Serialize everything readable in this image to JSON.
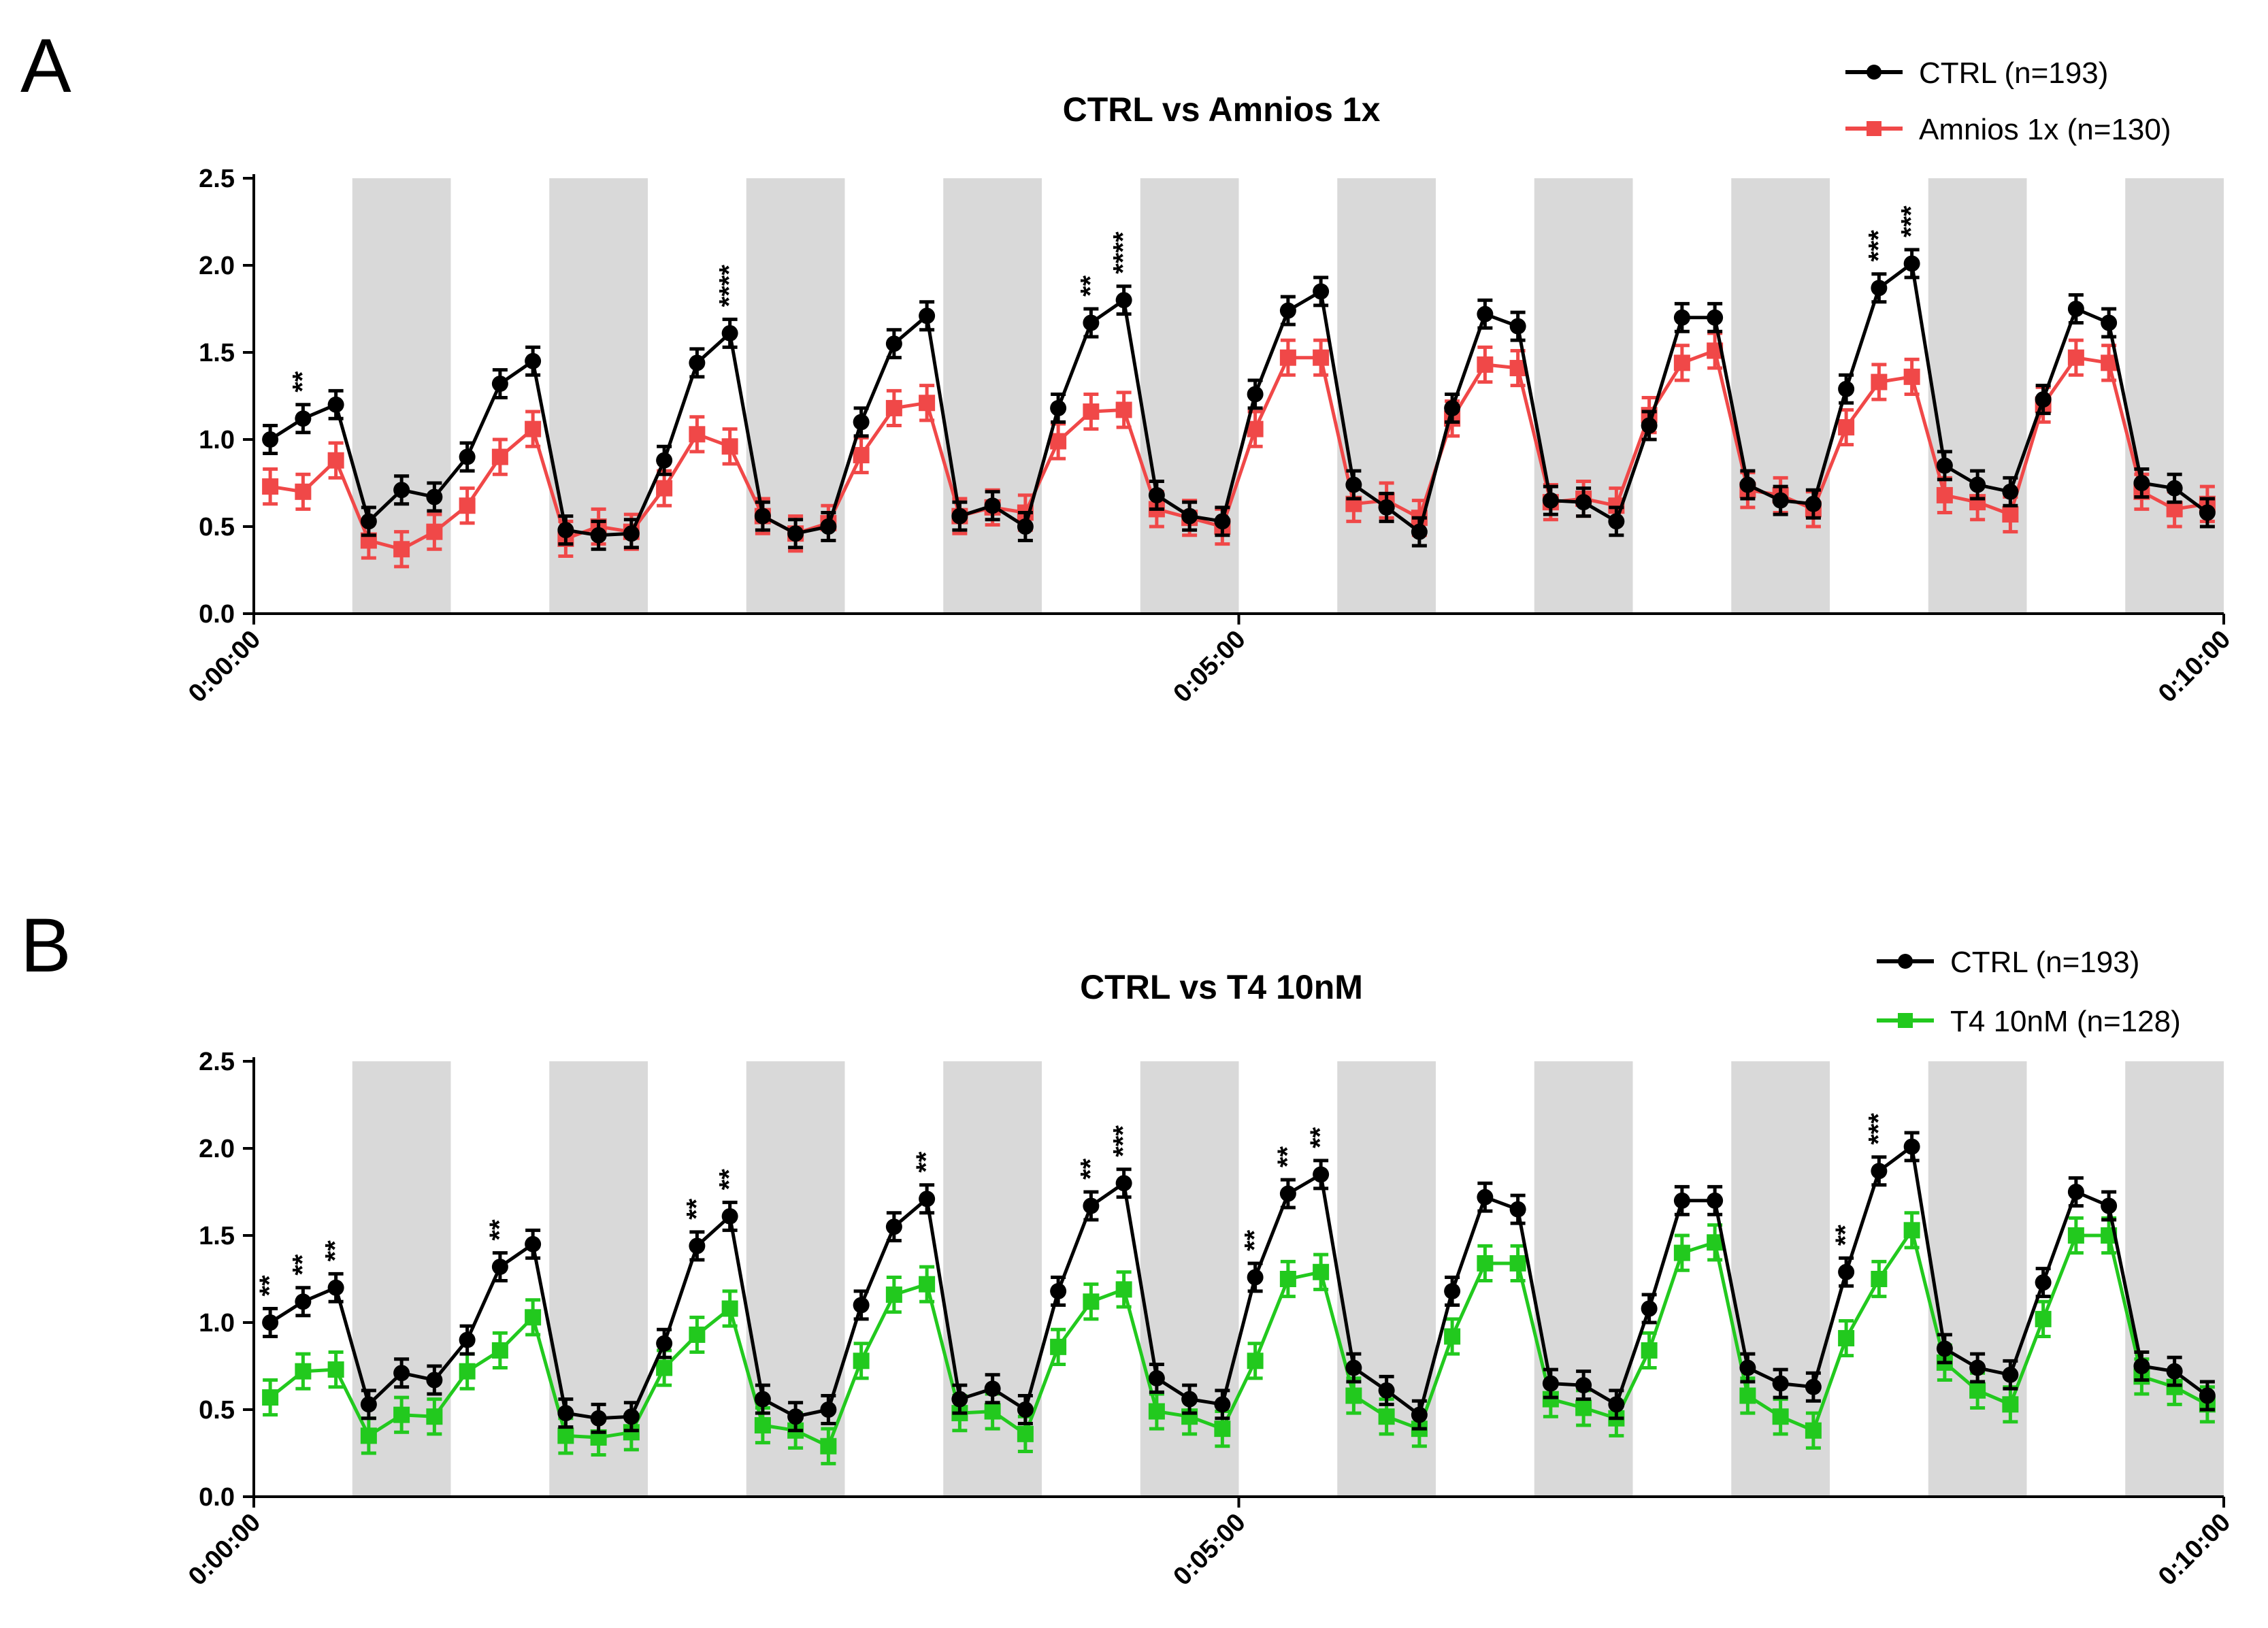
{
  "chart_data": [
    {
      "panel": "A",
      "type": "line",
      "title": "CTRL vs Amnios 1x",
      "xlabel": "",
      "ylabel": "",
      "ylim": [
        0,
        2.5
      ],
      "yticks": [
        "0.0",
        "0.5",
        "1.0",
        "1.5",
        "2.0",
        "2.5"
      ],
      "xlim": [
        0,
        600
      ],
      "xticks": [
        {
          "value": 0,
          "label": "0:00:00"
        },
        {
          "value": 300,
          "label": "0:05:00"
        },
        {
          "value": 600,
          "label": "0:10:00"
        }
      ],
      "dark_periods": [
        [
          30,
          60
        ],
        [
          90,
          120
        ],
        [
          150,
          180
        ],
        [
          210,
          240
        ],
        [
          270,
          300
        ],
        [
          330,
          360
        ],
        [
          390,
          420
        ],
        [
          450,
          480
        ],
        [
          510,
          540
        ],
        [
          570,
          600
        ]
      ],
      "x": [
        5,
        15,
        25,
        35,
        45,
        55,
        65,
        75,
        85,
        95,
        105,
        115,
        125,
        135,
        145,
        155,
        165,
        175,
        185,
        195,
        205,
        215,
        225,
        235,
        245,
        255,
        265,
        275,
        285,
        295,
        305,
        315,
        325,
        335,
        345,
        355,
        365,
        375,
        385,
        395,
        405,
        415,
        425,
        435,
        445,
        455,
        465,
        475,
        485,
        495,
        505,
        515,
        525,
        535,
        545,
        555,
        565,
        575,
        585,
        595
      ],
      "series": [
        {
          "name": "CTRL (n=193)",
          "color": "#000000",
          "marker": "circle",
          "values": [
            1.0,
            1.12,
            1.2,
            0.53,
            0.71,
            0.67,
            0.9,
            1.32,
            1.45,
            0.48,
            0.45,
            0.46,
            0.88,
            1.44,
            1.61,
            0.56,
            0.46,
            0.5,
            1.1,
            1.55,
            1.71,
            0.56,
            0.62,
            0.5,
            1.18,
            1.67,
            1.8,
            0.68,
            0.56,
            0.53,
            1.26,
            1.74,
            1.85,
            0.74,
            0.61,
            0.47,
            1.18,
            1.72,
            1.65,
            0.65,
            0.64,
            0.53,
            1.08,
            1.7,
            1.7,
            0.74,
            0.65,
            0.63,
            1.29,
            1.87,
            2.01,
            0.85,
            0.74,
            0.7,
            1.23,
            1.75,
            1.67,
            0.75,
            0.72,
            0.58
          ],
          "error": 0.08
        },
        {
          "name": "Amnios 1x (n=130)",
          "color": "#f04848",
          "marker": "square",
          "values": [
            0.73,
            0.7,
            0.88,
            0.42,
            0.37,
            0.47,
            0.62,
            0.9,
            1.06,
            0.43,
            0.5,
            0.47,
            0.72,
            1.03,
            0.96,
            0.56,
            0.46,
            0.52,
            0.91,
            1.18,
            1.21,
            0.56,
            0.61,
            0.58,
            0.99,
            1.16,
            1.17,
            0.6,
            0.55,
            0.5,
            1.06,
            1.47,
            1.47,
            0.63,
            0.65,
            0.55,
            1.12,
            1.43,
            1.41,
            0.64,
            0.66,
            0.62,
            1.14,
            1.44,
            1.51,
            0.71,
            0.68,
            0.6,
            1.07,
            1.33,
            1.36,
            0.68,
            0.64,
            0.57,
            1.2,
            1.47,
            1.44,
            0.7,
            0.6,
            0.63
          ],
          "error": 0.1
        }
      ],
      "annotations": [
        {
          "x": 15,
          "text": "**"
        },
        {
          "x": 145,
          "text": "****"
        },
        {
          "x": 255,
          "text": "**"
        },
        {
          "x": 265,
          "text": "****"
        },
        {
          "x": 495,
          "text": "***"
        },
        {
          "x": 505,
          "text": "***"
        }
      ],
      "legend": "top-right"
    },
    {
      "panel": "B",
      "type": "line",
      "title": "CTRL vs T4 10nM",
      "xlabel": "",
      "ylabel": "",
      "ylim": [
        0,
        2.5
      ],
      "yticks": [
        "0.0",
        "0.5",
        "1.0",
        "1.5",
        "2.0",
        "2.5"
      ],
      "xlim": [
        0,
        600
      ],
      "xticks": [
        {
          "value": 0,
          "label": "0:00:00"
        },
        {
          "value": 300,
          "label": "0:05:00"
        },
        {
          "value": 600,
          "label": "0:10:00"
        }
      ],
      "dark_periods": [
        [
          30,
          60
        ],
        [
          90,
          120
        ],
        [
          150,
          180
        ],
        [
          210,
          240
        ],
        [
          270,
          300
        ],
        [
          330,
          360
        ],
        [
          390,
          420
        ],
        [
          450,
          480
        ],
        [
          510,
          540
        ],
        [
          570,
          600
        ]
      ],
      "x": [
        5,
        15,
        25,
        35,
        45,
        55,
        65,
        75,
        85,
        95,
        105,
        115,
        125,
        135,
        145,
        155,
        165,
        175,
        185,
        195,
        205,
        215,
        225,
        235,
        245,
        255,
        265,
        275,
        285,
        295,
        305,
        315,
        325,
        335,
        345,
        355,
        365,
        375,
        385,
        395,
        405,
        415,
        425,
        435,
        445,
        455,
        465,
        475,
        485,
        495,
        505,
        515,
        525,
        535,
        545,
        555,
        565,
        575,
        585,
        595
      ],
      "series": [
        {
          "name": "CTRL (n=193)",
          "color": "#000000",
          "marker": "circle",
          "values": [
            1.0,
            1.12,
            1.2,
            0.53,
            0.71,
            0.67,
            0.9,
            1.32,
            1.45,
            0.48,
            0.45,
            0.46,
            0.88,
            1.44,
            1.61,
            0.56,
            0.46,
            0.5,
            1.1,
            1.55,
            1.71,
            0.56,
            0.62,
            0.5,
            1.18,
            1.67,
            1.8,
            0.68,
            0.56,
            0.53,
            1.26,
            1.74,
            1.85,
            0.74,
            0.61,
            0.47,
            1.18,
            1.72,
            1.65,
            0.65,
            0.64,
            0.53,
            1.08,
            1.7,
            1.7,
            0.74,
            0.65,
            0.63,
            1.29,
            1.87,
            2.01,
            0.85,
            0.74,
            0.7,
            1.23,
            1.75,
            1.67,
            0.75,
            0.72,
            0.58
          ],
          "error": 0.08
        },
        {
          "name": "T4 10nM (n=128)",
          "color": "#22c91e",
          "marker": "square",
          "values": [
            0.57,
            0.72,
            0.73,
            0.35,
            0.47,
            0.46,
            0.72,
            0.84,
            1.03,
            0.35,
            0.34,
            0.37,
            0.74,
            0.93,
            1.08,
            0.41,
            0.38,
            0.29,
            0.78,
            1.16,
            1.22,
            0.48,
            0.49,
            0.36,
            0.86,
            1.12,
            1.19,
            0.49,
            0.46,
            0.39,
            0.78,
            1.25,
            1.29,
            0.58,
            0.46,
            0.39,
            0.92,
            1.34,
            1.34,
            0.56,
            0.51,
            0.45,
            0.84,
            1.4,
            1.46,
            0.58,
            0.46,
            0.38,
            0.91,
            1.25,
            1.53,
            0.77,
            0.61,
            0.53,
            1.02,
            1.5,
            1.5,
            0.69,
            0.63,
            0.53
          ],
          "error": 0.1
        }
      ],
      "annotations": [
        {
          "x": 5,
          "text": "**"
        },
        {
          "x": 15,
          "text": "**"
        },
        {
          "x": 25,
          "text": "**"
        },
        {
          "x": 75,
          "text": "**"
        },
        {
          "x": 135,
          "text": "**"
        },
        {
          "x": 145,
          "text": "**"
        },
        {
          "x": 205,
          "text": "**"
        },
        {
          "x": 255,
          "text": "**"
        },
        {
          "x": 265,
          "text": "***"
        },
        {
          "x": 305,
          "text": "**"
        },
        {
          "x": 315,
          "text": "**"
        },
        {
          "x": 325,
          "text": "**"
        },
        {
          "x": 485,
          "text": "**"
        },
        {
          "x": 495,
          "text": "***"
        }
      ],
      "legend": "top-right"
    }
  ]
}
